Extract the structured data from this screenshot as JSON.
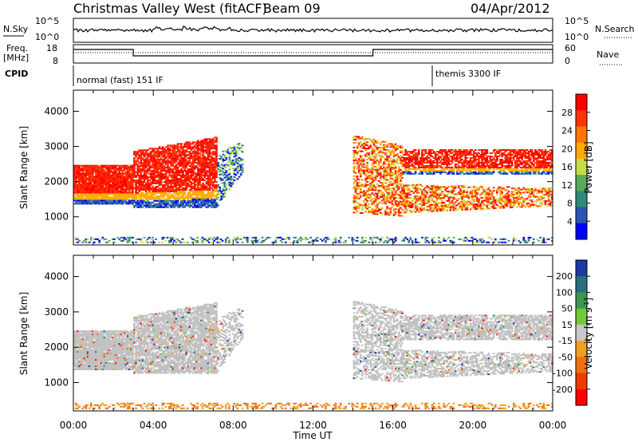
{
  "header": {
    "radar": "Christmas Valley West (fitACF)",
    "beam": "Beam 09",
    "date": "04/Apr/2012"
  },
  "strip": {
    "nsky_label": "N.Sky",
    "nsearch_label": "N.Search",
    "freq_label_1": "Freq.",
    "freq_label_2": "[MHz]",
    "nave_label": "Nave",
    "cpid_label": "CPID",
    "nsky_ticks": [
      "10^5",
      "10^0"
    ],
    "nsearch_ticks": [
      "10^5",
      "10^0"
    ],
    "freq_ticks": [
      "18",
      "8"
    ],
    "nave_ticks": [
      "60",
      "0"
    ],
    "cpid_mode_1": "normal (fast) 151 IF",
    "cpid_mode_2": "themis 3300 IF"
  },
  "chart_data": [
    {
      "type": "heatmap",
      "name": "power",
      "ylabel": "Slant Range [km]",
      "xlabel": "",
      "x_ticks": [
        "00:00",
        "04:00",
        "08:00",
        "12:00",
        "16:00",
        "20:00",
        "00:00"
      ],
      "y_ticks": [
        "1000",
        "2000",
        "3000",
        "4000"
      ],
      "ylim": [
        200,
        4600
      ],
      "xlim_hours": [
        0,
        24
      ],
      "colorbar_label": "Power [dB]",
      "colorbar_ticks": [
        "28",
        "24",
        "20",
        "16",
        "12",
        "8",
        "4"
      ],
      "colorbar_colors": [
        "#ff0000",
        "#ff3300",
        "#ff7700",
        "#ffaa00",
        "#c8dc46",
        "#5aaa5a",
        "#2e8b7a",
        "#2a55b0",
        "#0000ff"
      ]
    },
    {
      "type": "heatmap",
      "name": "velocity",
      "ylabel": "Slant Range [km]",
      "xlabel": "Time UT",
      "x_ticks": [
        "00:00",
        "04:00",
        "08:00",
        "12:00",
        "16:00",
        "20:00",
        "00:00"
      ],
      "y_ticks": [
        "1000",
        "2000",
        "3000",
        "4000"
      ],
      "ylim": [
        200,
        4600
      ],
      "xlim_hours": [
        0,
        24
      ],
      "colorbar_label": "Velocity [m s",
      "colorbar_label_sup": "-1",
      "colorbar_label_end": "]",
      "colorbar_ticks": [
        "200",
        "100",
        "50",
        "15",
        "-15",
        "-50",
        "-100",
        "-200"
      ],
      "colorbar_colors": [
        "#1a3aa0",
        "#2a6e82",
        "#3c9650",
        "#74c83a",
        "#c8c8c8",
        "#f0a020",
        "#f07010",
        "#f03a00",
        "#ff0000"
      ],
      "ground_scatter_color": "#c0c0c0"
    }
  ]
}
